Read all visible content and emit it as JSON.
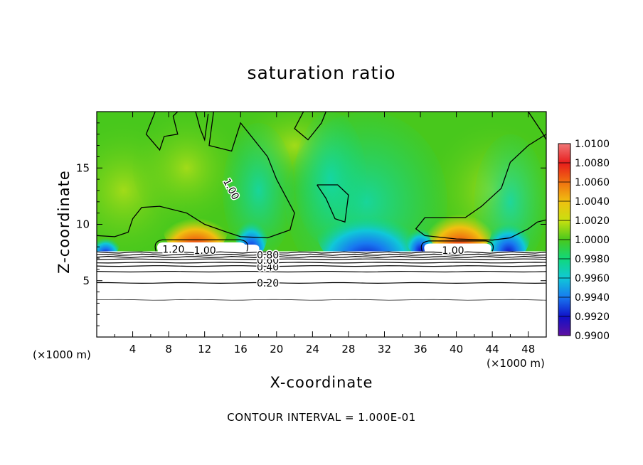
{
  "chart_data": {
    "type": "heatmap",
    "title": "saturation ratio",
    "xlabel": "X-coordinate",
    "ylabel": "Z-coordinate",
    "x_unit": "(×1000 m)",
    "z_unit": "(×1000 m)",
    "footer": "CONTOUR INTERVAL = 1.000E-01",
    "xlim": [
      0,
      50
    ],
    "ylim": [
      0,
      20
    ],
    "x_ticks": [
      4,
      8,
      12,
      16,
      20,
      24,
      28,
      32,
      36,
      40,
      44,
      48
    ],
    "x_tick_labels": [
      "4",
      "8",
      "12",
      "16",
      "20",
      "24",
      "28",
      "32",
      "36",
      "40",
      "44",
      "48"
    ],
    "y_ticks": [
      5,
      10,
      15
    ],
    "y_tick_labels": [
      "5",
      "10",
      "15"
    ],
    "colorbar": {
      "min": 0.99,
      "max": 1.01,
      "labels": [
        "1.0100",
        "1.0080",
        "1.0060",
        "1.0040",
        "1.0020",
        "1.0000",
        "0.9980",
        "0.9960",
        "0.9940",
        "0.9920",
        "0.9900"
      ],
      "colors": [
        "#f07878",
        "#e81c1c",
        "#f07010",
        "#f0c010",
        "#c8e010",
        "#48c81c",
        "#10d87c",
        "#10c8d8",
        "#1878f0",
        "#1010c8",
        "#6010a0"
      ]
    },
    "contour_lines": [
      {
        "label": "0.20",
        "z": 4.8
      },
      {
        "label": "0.40",
        "z": 6.3
      },
      {
        "label": "0.60",
        "z": 6.9
      },
      {
        "label": "0.80",
        "z": 7.3
      },
      {
        "label": "1.00",
        "z": 10.5
      },
      {
        "label": "1.20",
        "z": 7.7
      }
    ],
    "field_features": [
      {
        "x": 11,
        "z": 9.8,
        "value": 1.007,
        "note": "supersaturated cap over white saturated region"
      },
      {
        "x": 40,
        "z": 10.2,
        "value": 1.007,
        "note": "supersaturated cap over white saturated region"
      },
      {
        "x": 30,
        "z": 9.0,
        "value": 0.992,
        "note": "subsaturated minimum"
      },
      {
        "x": 17,
        "z": 9.0,
        "value": 0.994,
        "note": "subsaturated"
      },
      {
        "x": 46,
        "z": 8.6,
        "value": 0.994,
        "note": "subsaturated"
      }
    ]
  }
}
